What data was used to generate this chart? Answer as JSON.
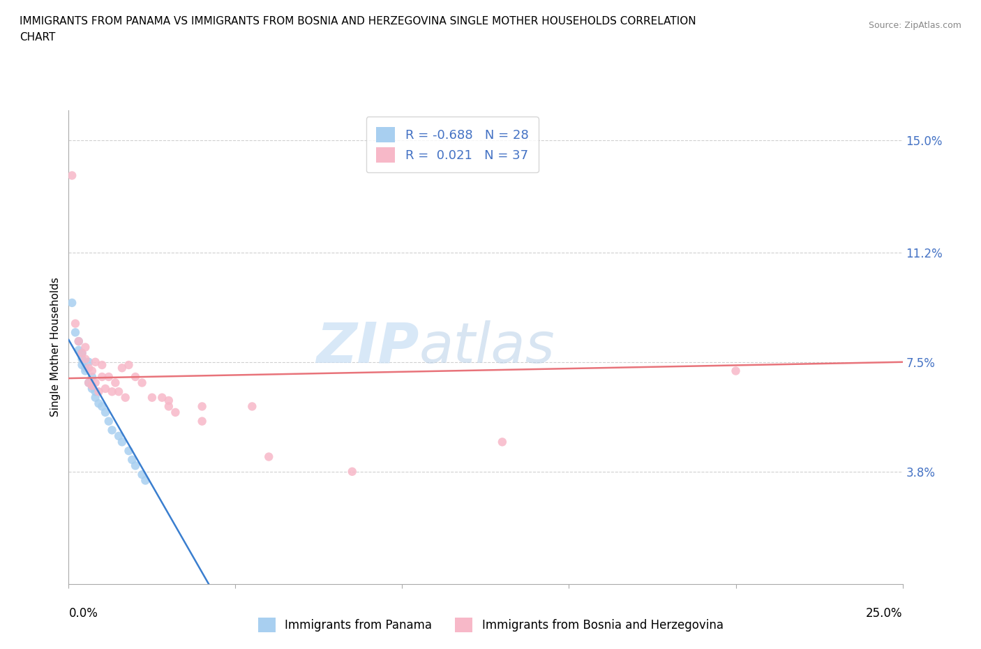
{
  "title_line1": "IMMIGRANTS FROM PANAMA VS IMMIGRANTS FROM BOSNIA AND HERZEGOVINA SINGLE MOTHER HOUSEHOLDS CORRELATION",
  "title_line2": "CHART",
  "source": "Source: ZipAtlas.com",
  "ylabel": "Single Mother Households",
  "watermark_zip": "ZIP",
  "watermark_atlas": "atlas",
  "xlim": [
    0.0,
    0.25
  ],
  "ylim": [
    0.0,
    0.16
  ],
  "yticks": [
    0.038,
    0.075,
    0.112,
    0.15
  ],
  "ytick_labels": [
    "3.8%",
    "7.5%",
    "11.2%",
    "15.0%"
  ],
  "xtick_labels_left": "0.0%",
  "xtick_labels_right": "25.0%",
  "panama_R": -0.688,
  "panama_N": 28,
  "bosnia_R": 0.021,
  "bosnia_N": 37,
  "panama_color": "#a8cff0",
  "bosnia_color": "#f7b8c8",
  "panama_line_color": "#3a7ecf",
  "bosnia_line_color": "#e8737a",
  "grid_color": "#d0d0d0",
  "background_color": "#ffffff",
  "panama_points_x": [
    0.001,
    0.002,
    0.003,
    0.003,
    0.004,
    0.004,
    0.004,
    0.005,
    0.005,
    0.006,
    0.006,
    0.007,
    0.007,
    0.007,
    0.008,
    0.008,
    0.009,
    0.01,
    0.011,
    0.012,
    0.013,
    0.015,
    0.016,
    0.018,
    0.019,
    0.02,
    0.022,
    0.023
  ],
  "panama_points_y": [
    0.095,
    0.085,
    0.082,
    0.079,
    0.078,
    0.076,
    0.074,
    0.073,
    0.072,
    0.075,
    0.068,
    0.07,
    0.067,
    0.066,
    0.065,
    0.063,
    0.061,
    0.06,
    0.058,
    0.055,
    0.052,
    0.05,
    0.048,
    0.045,
    0.042,
    0.04,
    0.037,
    0.035
  ],
  "bosnia_points_x": [
    0.001,
    0.002,
    0.003,
    0.004,
    0.005,
    0.005,
    0.006,
    0.006,
    0.007,
    0.007,
    0.008,
    0.008,
    0.009,
    0.01,
    0.01,
    0.011,
    0.012,
    0.013,
    0.014,
    0.015,
    0.016,
    0.017,
    0.018,
    0.02,
    0.022,
    0.025,
    0.028,
    0.03,
    0.03,
    0.032,
    0.04,
    0.04,
    0.055,
    0.06,
    0.085,
    0.13,
    0.2
  ],
  "bosnia_points_y": [
    0.138,
    0.088,
    0.082,
    0.078,
    0.08,
    0.076,
    0.073,
    0.068,
    0.072,
    0.067,
    0.075,
    0.068,
    0.065,
    0.074,
    0.07,
    0.066,
    0.07,
    0.065,
    0.068,
    0.065,
    0.073,
    0.063,
    0.074,
    0.07,
    0.068,
    0.063,
    0.063,
    0.06,
    0.062,
    0.058,
    0.055,
    0.06,
    0.06,
    0.043,
    0.038,
    0.048,
    0.072
  ],
  "panama_line_x": [
    0.0,
    0.042
  ],
  "panama_line_y": [
    0.0825,
    0.0
  ],
  "bosnia_line_x": [
    0.0,
    0.25
  ],
  "bosnia_line_y": [
    0.0695,
    0.075
  ]
}
